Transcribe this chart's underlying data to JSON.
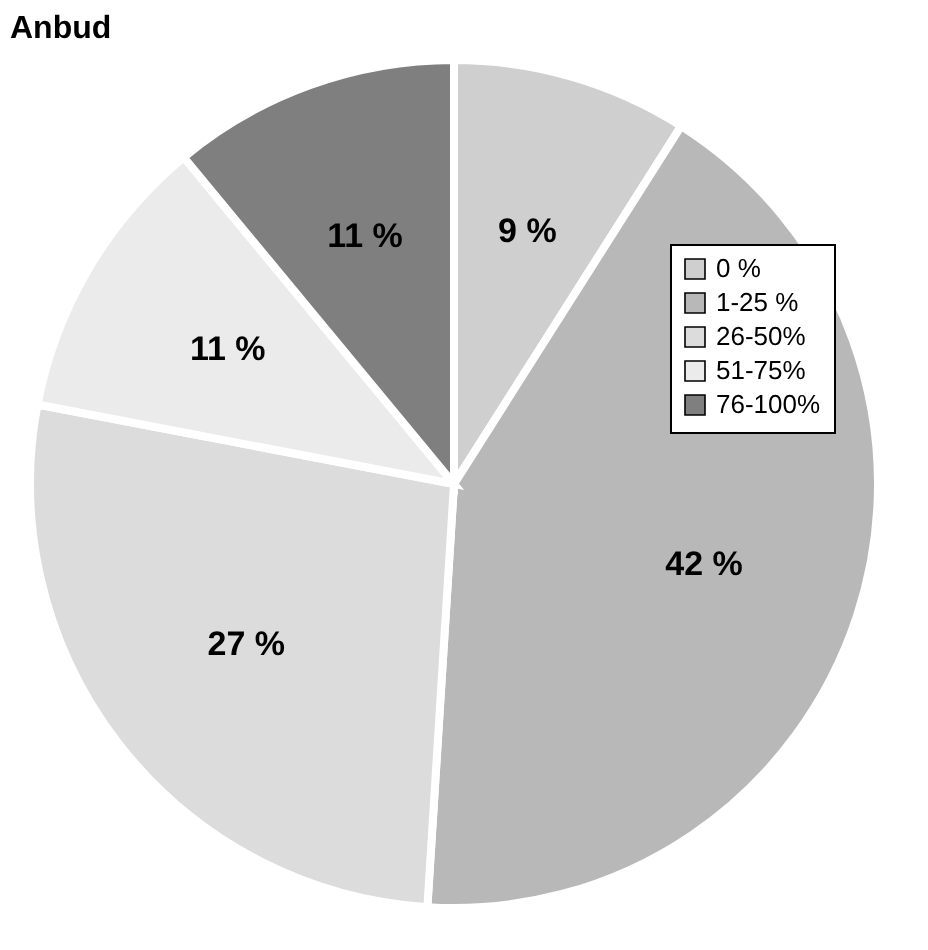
{
  "chart_data": {
    "type": "pie",
    "title": "Anbud",
    "categories": [
      "0 %",
      "1-25 %",
      "26-50%",
      "51-75%",
      "76-100%"
    ],
    "values": [
      9,
      42,
      27,
      11,
      11
    ],
    "colors": [
      "#cfcfcf",
      "#b8b8b8",
      "#dcdcdc",
      "#ebebeb",
      "#7f7f7f"
    ],
    "value_labels": [
      "9 %",
      "42 %",
      "27 %",
      "11 %",
      "11 %"
    ],
    "legend": "top right"
  }
}
